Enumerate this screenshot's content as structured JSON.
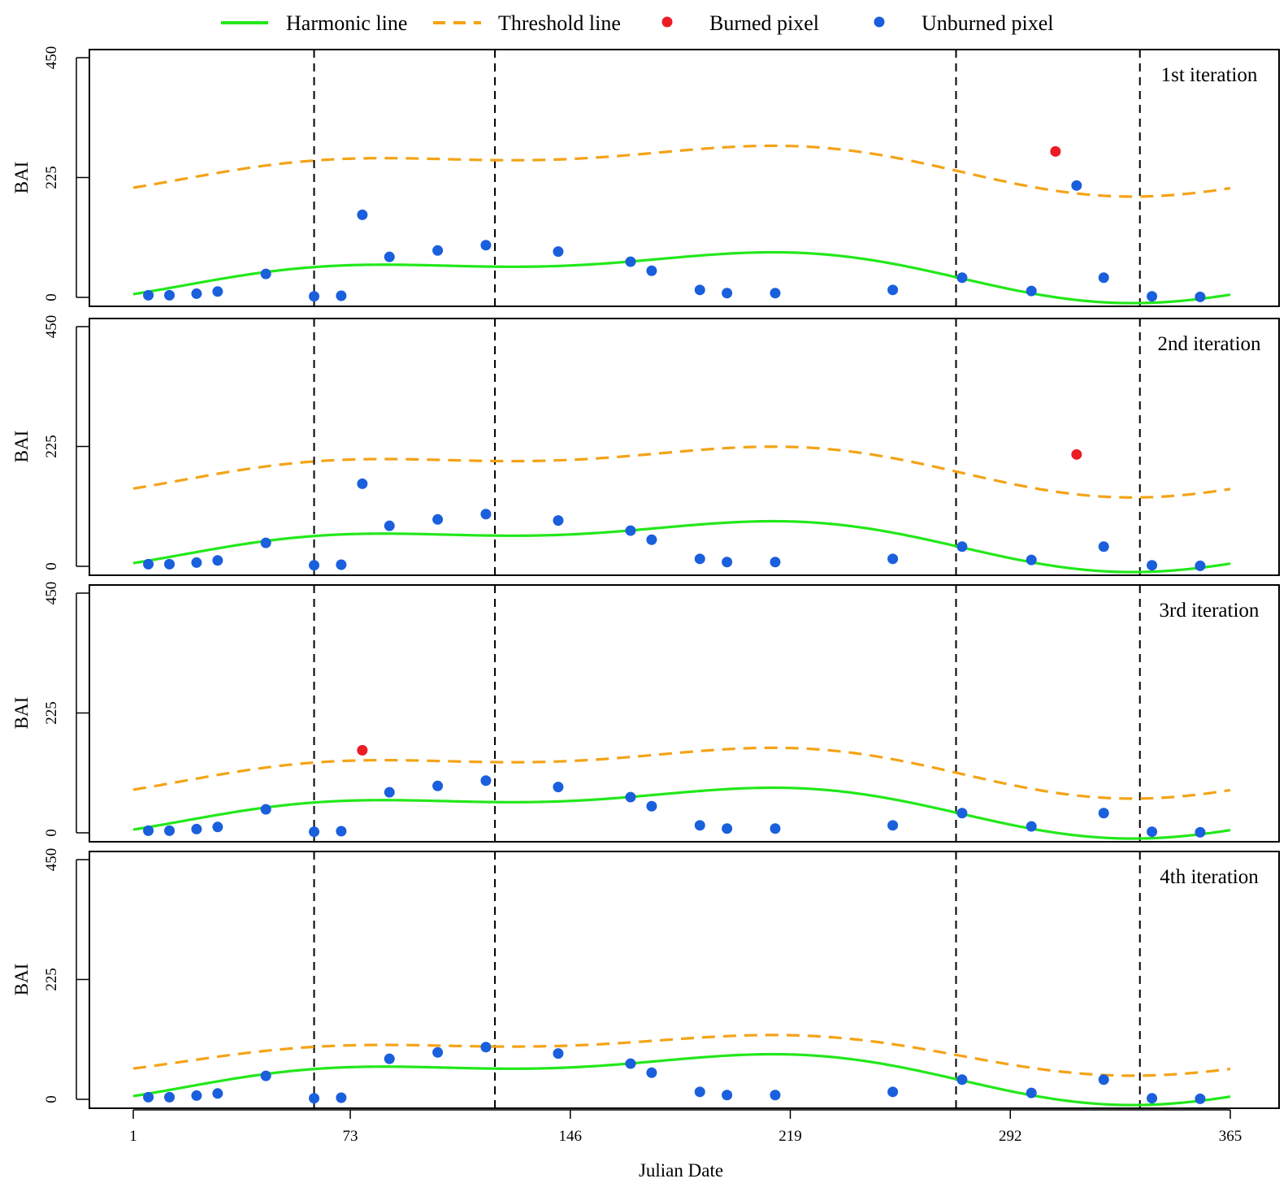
{
  "legend": {
    "harmonic": "Harmonic line",
    "threshold": "Threshold line",
    "burned": "Burned pixel",
    "unburned": "Unburned pixel"
  },
  "colors": {
    "harmonic": "#22e81a",
    "threshold": "#f4a316",
    "burned": "#ec1c24",
    "unburned": "#1a5fdc",
    "vlines": "#000000"
  },
  "chart_data": {
    "type": "scatter",
    "xlabel": "Julian Date",
    "ylabel": "BAI",
    "xlim": [
      1,
      365
    ],
    "ylim": [
      0,
      450
    ],
    "x_ticks": [
      1,
      73,
      146,
      219,
      292,
      365
    ],
    "y_ticks": [
      0,
      225,
      450
    ],
    "grid": false,
    "legend_position": "top-center",
    "vertical_lines_x": [
      61,
      121,
      274,
      335
    ],
    "harmonic": {
      "mean": 45,
      "h1_cos": -35,
      "h1_sin": 12,
      "h2_cos": -4,
      "h2_sin": 20
    },
    "points_x": [
      6,
      13,
      22,
      29,
      45,
      61,
      70,
      77,
      86,
      102,
      118,
      142,
      166,
      173,
      189,
      198,
      214,
      253,
      276,
      299,
      307,
      314,
      323,
      339,
      355
    ],
    "points_y": [
      4,
      4,
      7,
      11,
      44,
      2,
      3,
      155,
      76,
      88,
      98,
      86,
      67,
      50,
      14,
      8,
      8,
      14,
      37,
      12,
      274,
      210,
      37,
      2,
      1
    ],
    "panels": [
      {
        "label": "1st iteration",
        "threshold_offset": 200,
        "threshold_scale": 1.0,
        "burned_x": [
          307
        ]
      },
      {
        "label": "2nd iteration",
        "threshold_offset": 140,
        "threshold_scale": 1.0,
        "burned_x": [
          314
        ]
      },
      {
        "label": "3rd iteration",
        "threshold_offset": 75,
        "threshold_scale": 1.0,
        "burned_x": [
          77
        ]
      },
      {
        "label": "4th iteration",
        "threshold_offset": 53,
        "threshold_scale": 0.8,
        "burned_x": []
      }
    ]
  }
}
